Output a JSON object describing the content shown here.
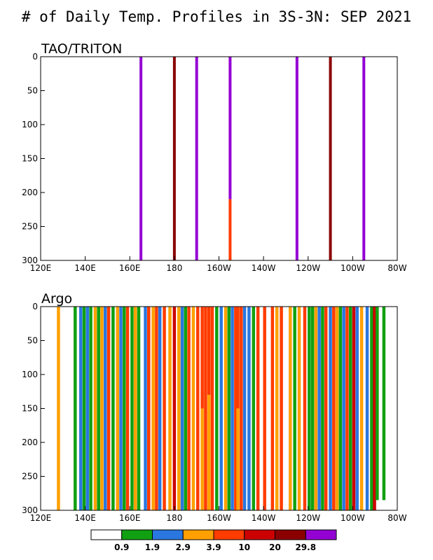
{
  "title": "# of Daily Temp. Profiles in 3S-3N: SEP 2021",
  "colors": {
    "white": "#ffffff",
    "green": "#11a011",
    "blue": "#2a77e0",
    "orange": "#ffa000",
    "redorange": "#ff3c00",
    "red": "#cc0000",
    "darkred": "#8b0000",
    "purple": "#9400d3"
  },
  "colorbar": {
    "colors": [
      "white",
      "green",
      "blue",
      "orange",
      "redorange",
      "red",
      "darkred",
      "purple"
    ],
    "labels": [
      "0.9",
      "1.9",
      "2.9",
      "3.9",
      "10",
      "20",
      "29.8"
    ]
  },
  "chart_data": [
    {
      "type": "heatmap",
      "title": "TAO/TRITON",
      "x_ticks": [
        "120E",
        "140E",
        "160E",
        "180",
        "160W",
        "140W",
        "120W",
        "100W",
        "80W"
      ],
      "y_ticks": [
        "0",
        "50",
        "100",
        "150",
        "200",
        "250",
        "300"
      ],
      "xlim": [
        120,
        280
      ],
      "ylim": [
        0,
        300
      ],
      "columns": [
        {
          "lon": 165,
          "segments": [
            {
              "top": 0,
              "bottom": 300,
              "color": "purple"
            }
          ]
        },
        {
          "lon": 180,
          "segments": [
            {
              "top": 0,
              "bottom": 300,
              "color": "darkred"
            }
          ]
        },
        {
          "lon": 190,
          "segments": [
            {
              "top": 0,
              "bottom": 300,
              "color": "purple"
            }
          ]
        },
        {
          "lon": 205,
          "segments": [
            {
              "top": 0,
              "bottom": 210,
              "color": "purple"
            },
            {
              "top": 210,
              "bottom": 300,
              "color": "redorange"
            }
          ]
        },
        {
          "lon": 235,
          "segments": [
            {
              "top": 0,
              "bottom": 300,
              "color": "purple"
            }
          ]
        },
        {
          "lon": 250,
          "segments": [
            {
              "top": 0,
              "bottom": 300,
              "color": "darkred"
            }
          ]
        },
        {
          "lon": 265,
          "segments": [
            {
              "top": 0,
              "bottom": 300,
              "color": "purple"
            }
          ]
        }
      ]
    },
    {
      "type": "heatmap",
      "title": "Argo",
      "x_ticks": [
        "120E",
        "140E",
        "160E",
        "180",
        "160W",
        "140W",
        "120W",
        "100W",
        "80W"
      ],
      "y_ticks": [
        "0",
        "50",
        "100",
        "150",
        "200",
        "250",
        "300"
      ],
      "xlim": [
        120,
        280
      ],
      "ylim": [
        0,
        300
      ],
      "columns": [
        {
          "lon": 128,
          "segments": [
            {
              "top": 0,
              "bottom": 300,
              "color": "orange"
            }
          ]
        },
        {
          "lon": 135.5,
          "segments": [
            {
              "top": 0,
              "bottom": 300,
              "color": "green"
            }
          ]
        },
        {
          "lon": 138,
          "segments": [
            {
              "top": 0,
              "bottom": 300,
              "color": "blue"
            }
          ]
        },
        {
          "lon": 139.5,
          "segments": [
            {
              "top": 0,
              "bottom": 300,
              "color": "green"
            }
          ]
        },
        {
          "lon": 141,
          "segments": [
            {
              "top": 0,
              "bottom": 300,
              "color": "blue"
            }
          ]
        },
        {
          "lon": 142.5,
          "segments": [
            {
              "top": 0,
              "bottom": 300,
              "color": "green"
            }
          ]
        },
        {
          "lon": 144.5,
          "segments": [
            {
              "top": 0,
              "bottom": 300,
              "color": "orange"
            }
          ]
        },
        {
          "lon": 146,
          "segments": [
            {
              "top": 0,
              "bottom": 300,
              "color": "green"
            }
          ]
        },
        {
          "lon": 147.5,
          "segments": [
            {
              "top": 0,
              "bottom": 300,
              "color": "orange"
            }
          ]
        },
        {
          "lon": 149,
          "segments": [
            {
              "top": 0,
              "bottom": 300,
              "color": "blue"
            }
          ]
        },
        {
          "lon": 150.5,
          "segments": [
            {
              "top": 0,
              "bottom": 300,
              "color": "redorange"
            }
          ]
        },
        {
          "lon": 152.5,
          "segments": [
            {
              "top": 0,
              "bottom": 300,
              "color": "green"
            }
          ]
        },
        {
          "lon": 154.5,
          "segments": [
            {
              "top": 0,
              "bottom": 300,
              "color": "orange"
            }
          ]
        },
        {
          "lon": 156,
          "segments": [
            {
              "top": 0,
              "bottom": 300,
              "color": "blue"
            }
          ]
        },
        {
          "lon": 157.5,
          "segments": [
            {
              "top": 0,
              "bottom": 300,
              "color": "green"
            }
          ]
        },
        {
          "lon": 159,
          "segments": [
            {
              "top": 0,
              "bottom": 300,
              "color": "redorange"
            }
          ]
        },
        {
          "lon": 161,
          "segments": [
            {
              "top": 0,
              "bottom": 300,
              "color": "green"
            }
          ]
        },
        {
          "lon": 162.5,
          "segments": [
            {
              "top": 0,
              "bottom": 300,
              "color": "orange"
            }
          ]
        },
        {
          "lon": 164,
          "segments": [
            {
              "top": 0,
              "bottom": 300,
              "color": "green"
            }
          ]
        },
        {
          "lon": 167,
          "segments": [
            {
              "top": 0,
              "bottom": 300,
              "color": "blue"
            }
          ]
        },
        {
          "lon": 168.5,
          "segments": [
            {
              "top": 0,
              "bottom": 300,
              "color": "redorange"
            }
          ]
        },
        {
          "lon": 170.5,
          "segments": [
            {
              "top": 0,
              "bottom": 300,
              "color": "orange"
            }
          ]
        },
        {
          "lon": 172,
          "segments": [
            {
              "top": 0,
              "bottom": 300,
              "color": "redorange"
            }
          ]
        },
        {
          "lon": 173.5,
          "segments": [
            {
              "top": 0,
              "bottom": 300,
              "color": "blue"
            }
          ]
        },
        {
          "lon": 175.5,
          "segments": [
            {
              "top": 0,
              "bottom": 300,
              "color": "redorange"
            }
          ]
        },
        {
          "lon": 178,
          "segments": [
            {
              "top": 0,
              "bottom": 300,
              "color": "orange"
            }
          ]
        },
        {
          "lon": 180,
          "segments": [
            {
              "top": 0,
              "bottom": 300,
              "color": "red"
            }
          ]
        },
        {
          "lon": 182,
          "segments": [
            {
              "top": 0,
              "bottom": 300,
              "color": "orange"
            }
          ]
        },
        {
          "lon": 183.5,
          "segments": [
            {
              "top": 0,
              "bottom": 300,
              "color": "blue"
            }
          ]
        },
        {
          "lon": 185,
          "segments": [
            {
              "top": 0,
              "bottom": 300,
              "color": "green"
            }
          ]
        },
        {
          "lon": 186.5,
          "segments": [
            {
              "top": 0,
              "bottom": 300,
              "color": "redorange"
            }
          ]
        },
        {
          "lon": 188.5,
          "segments": [
            {
              "top": 0,
              "bottom": 300,
              "color": "orange"
            }
          ]
        },
        {
          "lon": 190.5,
          "segments": [
            {
              "top": 0,
              "bottom": 300,
              "color": "redorange"
            }
          ]
        },
        {
          "lon": 192.5,
          "segments": [
            {
              "top": 0,
              "bottom": 150,
              "color": "redorange"
            },
            {
              "top": 150,
              "bottom": 300,
              "color": "orange"
            }
          ]
        },
        {
          "lon": 194,
          "segments": [
            {
              "top": 0,
              "bottom": 300,
              "color": "redorange"
            }
          ]
        },
        {
          "lon": 195.5,
          "segments": [
            {
              "top": 0,
              "bottom": 130,
              "color": "redorange"
            },
            {
              "top": 130,
              "bottom": 300,
              "color": "orange"
            }
          ]
        },
        {
          "lon": 197,
          "segments": [
            {
              "top": 0,
              "bottom": 300,
              "color": "redorange"
            }
          ]
        },
        {
          "lon": 199,
          "segments": [
            {
              "top": 0,
              "bottom": 300,
              "color": "green"
            }
          ]
        },
        {
          "lon": 201,
          "segments": [
            {
              "top": 0,
              "bottom": 300,
              "color": "blue"
            }
          ]
        },
        {
          "lon": 203,
          "segments": [
            {
              "top": 0,
              "bottom": 300,
              "color": "orange"
            }
          ]
        },
        {
          "lon": 204.5,
          "segments": [
            {
              "top": 0,
              "bottom": 300,
              "color": "green"
            }
          ]
        },
        {
          "lon": 206,
          "segments": [
            {
              "top": 0,
              "bottom": 300,
              "color": "blue"
            }
          ]
        },
        {
          "lon": 207.5,
          "segments": [
            {
              "top": 0,
              "bottom": 300,
              "color": "redorange"
            }
          ]
        },
        {
          "lon": 208.5,
          "segments": [
            {
              "top": 0,
              "bottom": 150,
              "color": "redorange"
            },
            {
              "top": 150,
              "bottom": 300,
              "color": "orange"
            }
          ]
        },
        {
          "lon": 210,
          "segments": [
            {
              "top": 0,
              "bottom": 300,
              "color": "redorange"
            }
          ]
        },
        {
          "lon": 211.5,
          "segments": [
            {
              "top": 0,
              "bottom": 300,
              "color": "blue"
            }
          ]
        },
        {
          "lon": 213.5,
          "segments": [
            {
              "top": 0,
              "bottom": 300,
              "color": "blue"
            }
          ]
        },
        {
          "lon": 215.5,
          "segments": [
            {
              "top": 0,
              "bottom": 300,
              "color": "green"
            }
          ]
        },
        {
          "lon": 217.5,
          "segments": [
            {
              "top": 0,
              "bottom": 300,
              "color": "redorange"
            }
          ]
        },
        {
          "lon": 220.5,
          "segments": [
            {
              "top": 0,
              "bottom": 300,
              "color": "redorange"
            }
          ]
        },
        {
          "lon": 224,
          "segments": [
            {
              "top": 0,
              "bottom": 300,
              "color": "redorange"
            }
          ]
        },
        {
          "lon": 226,
          "segments": [
            {
              "top": 0,
              "bottom": 300,
              "color": "orange"
            }
          ]
        },
        {
          "lon": 228,
          "segments": [
            {
              "top": 0,
              "bottom": 300,
              "color": "redorange"
            }
          ]
        },
        {
          "lon": 232,
          "segments": [
            {
              "top": 0,
              "bottom": 300,
              "color": "orange"
            }
          ]
        },
        {
          "lon": 234,
          "segments": [
            {
              "top": 0,
              "bottom": 300,
              "color": "green"
            }
          ]
        },
        {
          "lon": 236,
          "segments": [
            {
              "top": 0,
              "bottom": 300,
              "color": "orange"
            }
          ]
        },
        {
          "lon": 238.5,
          "segments": [
            {
              "top": 0,
              "bottom": 300,
              "color": "redorange"
            }
          ]
        },
        {
          "lon": 240.5,
          "segments": [
            {
              "top": 0,
              "bottom": 300,
              "color": "green"
            }
          ]
        },
        {
          "lon": 242,
          "segments": [
            {
              "top": 0,
              "bottom": 300,
              "color": "green"
            }
          ]
        },
        {
          "lon": 243.5,
          "segments": [
            {
              "top": 0,
              "bottom": 300,
              "color": "orange"
            }
          ]
        },
        {
          "lon": 245,
          "segments": [
            {
              "top": 0,
              "bottom": 300,
              "color": "blue"
            }
          ]
        },
        {
          "lon": 246.5,
          "segments": [
            {
              "top": 0,
              "bottom": 300,
              "color": "green"
            }
          ]
        },
        {
          "lon": 248,
          "segments": [
            {
              "top": 0,
              "bottom": 300,
              "color": "redorange"
            }
          ]
        },
        {
          "lon": 250,
          "segments": [
            {
              "top": 0,
              "bottom": 300,
              "color": "blue"
            }
          ]
        },
        {
          "lon": 251.5,
          "segments": [
            {
              "top": 0,
              "bottom": 300,
              "color": "redorange"
            }
          ]
        },
        {
          "lon": 253,
          "segments": [
            {
              "top": 0,
              "bottom": 300,
              "color": "orange"
            }
          ]
        },
        {
          "lon": 254.5,
          "segments": [
            {
              "top": 0,
              "bottom": 300,
              "color": "green"
            }
          ]
        },
        {
          "lon": 256,
          "segments": [
            {
              "top": 0,
              "bottom": 300,
              "color": "blue"
            }
          ]
        },
        {
          "lon": 257.5,
          "segments": [
            {
              "top": 0,
              "bottom": 300,
              "color": "redorange"
            }
          ]
        },
        {
          "lon": 259,
          "segments": [
            {
              "top": 0,
              "bottom": 300,
              "color": "green"
            }
          ]
        },
        {
          "lon": 260.5,
          "segments": [
            {
              "top": 0,
              "bottom": 300,
              "color": "red"
            }
          ]
        },
        {
          "lon": 262,
          "segments": [
            {
              "top": 0,
              "bottom": 300,
              "color": "blue"
            }
          ]
        },
        {
          "lon": 264,
          "segments": [
            {
              "top": 0,
              "bottom": 300,
              "color": "orange"
            }
          ]
        },
        {
          "lon": 266.5,
          "segments": [
            {
              "top": 0,
              "bottom": 300,
              "color": "blue"
            }
          ]
        },
        {
          "lon": 268.5,
          "segments": [
            {
              "top": 0,
              "bottom": 300,
              "color": "green"
            }
          ]
        },
        {
          "lon": 269.8,
          "segments": [
            {
              "top": 0,
              "bottom": 300,
              "color": "red"
            }
          ]
        },
        {
          "lon": 271,
          "segments": [
            {
              "top": 0,
              "bottom": 285,
              "color": "green"
            }
          ]
        },
        {
          "lon": 274,
          "segments": [
            {
              "top": 0,
              "bottom": 285,
              "color": "green"
            }
          ]
        }
      ]
    }
  ]
}
